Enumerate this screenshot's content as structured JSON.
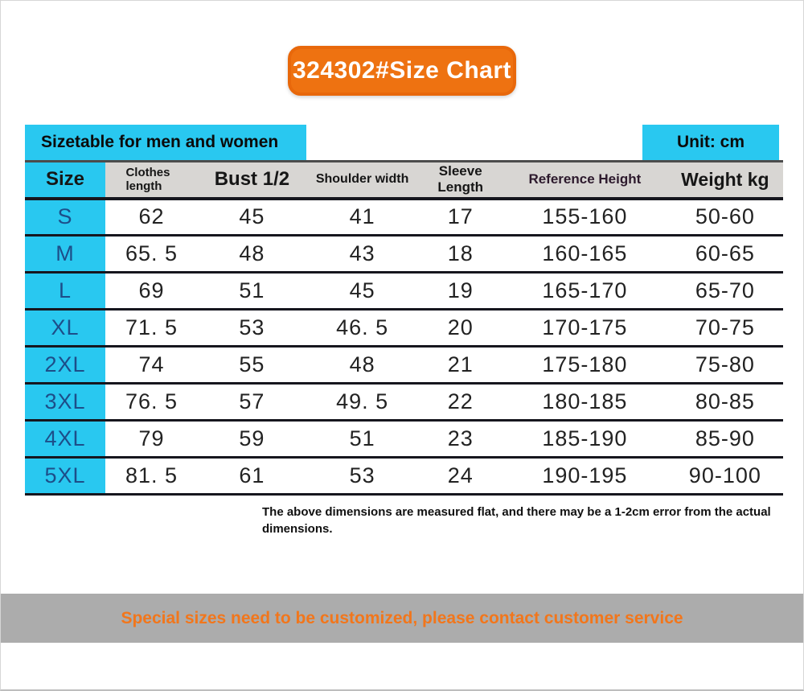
{
  "title_badge": {
    "text": "324302#Size Chart"
  },
  "caption": {
    "left_label": "Sizetable for men and women",
    "right_label": "Unit: cm"
  },
  "colors": {
    "accent_cyan": "#29c8f0",
    "accent_orange": "#ee7211",
    "footer_gray": "#acacac",
    "header_row_gray": "#d8d6d3",
    "size_letter_blue": "#1d4e89"
  },
  "chart_data": {
    "type": "table",
    "title": "324302#Size Chart",
    "unit": "cm",
    "columns": [
      "Size",
      "Clothes length",
      "Bust 1/2",
      "Shoulder width",
      "Sleeve Length",
      "Reference Height",
      "Weight kg"
    ],
    "rows": [
      [
        "S",
        "62",
        "45",
        "41",
        "17",
        "155-160",
        "50-60"
      ],
      [
        "M",
        "65. 5",
        "48",
        "43",
        "18",
        "160-165",
        "60-65"
      ],
      [
        "L",
        "69",
        "51",
        "45",
        "19",
        "165-170",
        "65-70"
      ],
      [
        "XL",
        "71. 5",
        "53",
        "46. 5",
        "20",
        "170-175",
        "70-75"
      ],
      [
        "2XL",
        "74",
        "55",
        "48",
        "21",
        "175-180",
        "75-80"
      ],
      [
        "3XL",
        "76. 5",
        "57",
        "49. 5",
        "22",
        "180-185",
        "80-85"
      ],
      [
        "4XL",
        "79",
        "59",
        "51",
        "23",
        "185-190",
        "85-90"
      ],
      [
        "5XL",
        "81. 5",
        "61",
        "53",
        "24",
        "190-195",
        "90-100"
      ]
    ]
  },
  "note": "The above dimensions are measured flat, and there may be a 1-2cm error from the actual dimensions.",
  "footer": {
    "text": "Special sizes need to be customized, please contact customer service"
  }
}
